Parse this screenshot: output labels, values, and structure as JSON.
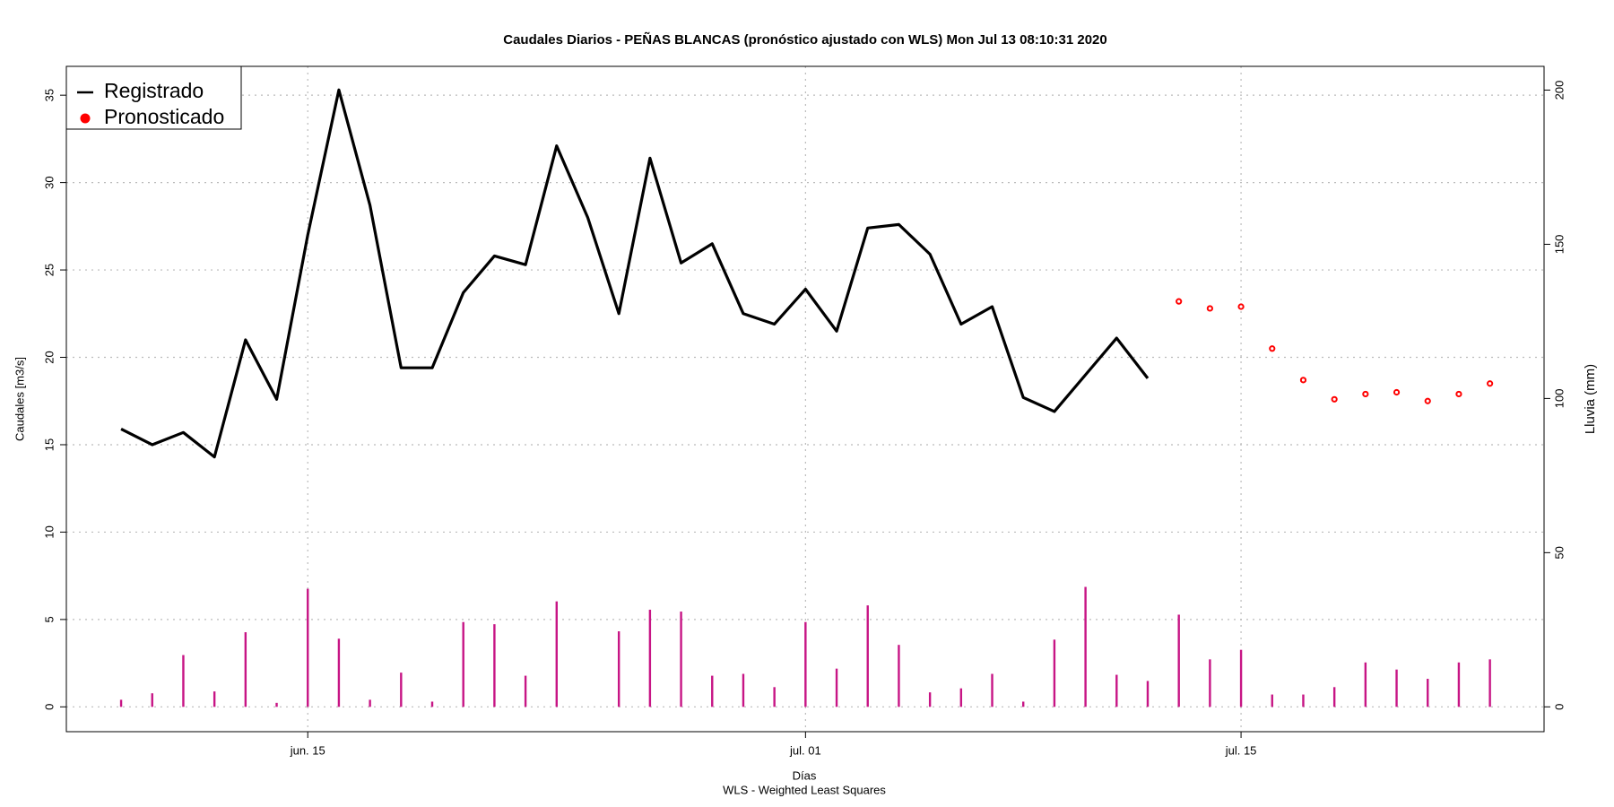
{
  "chart_data": {
    "type": "line",
    "title": "Caudales Diarios -  PEÑAS BLANCAS  (pronóstico ajustado con WLS) Mon Jul 13 08:10:31 2020",
    "xlabel": "Días",
    "subtitle": "WLS - Weighted Least Squares",
    "ylabel": "Caudales [m3/s]",
    "y2label": "Lluvia (mm)",
    "y2label_color": "#c71585",
    "categories": [
      null,
      null,
      null,
      null,
      null,
      null,
      "jun. 15",
      null,
      null,
      null,
      null,
      null,
      null,
      null,
      null,
      null,
      null,
      null,
      null,
      null,
      null,
      null,
      "jul. 01",
      null,
      null,
      null,
      null,
      null,
      null,
      null,
      null,
      null,
      null,
      null,
      null,
      null,
      "jul. 15",
      null,
      null,
      null,
      null,
      null,
      null,
      null,
      null
    ],
    "ylim": [
      -1.42,
      36.65
    ],
    "yticks": [
      0,
      5,
      10,
      15,
      20,
      25,
      30,
      35
    ],
    "y2lim": [
      -8.05,
      207.7
    ],
    "y2ticks": [
      0,
      50,
      100,
      150,
      200
    ],
    "grid": true,
    "legend": "top-left",
    "series": [
      {
        "name": "Registrado",
        "type": "line",
        "color": "#000000",
        "values": [
          15.9,
          15.0,
          15.7,
          14.3,
          21.0,
          17.6,
          27.0,
          35.3,
          28.7,
          19.4,
          19.4,
          23.7,
          25.8,
          25.3,
          32.1,
          28.0,
          22.5,
          31.4,
          25.4,
          26.5,
          22.5,
          21.9,
          23.9,
          21.5,
          27.4,
          27.6,
          25.9,
          21.9,
          22.9,
          17.7,
          16.9,
          19.0,
          21.1,
          18.8,
          null,
          null,
          null,
          null,
          null,
          null,
          null,
          null,
          null,
          null,
          null
        ]
      },
      {
        "name": "Pronosticado",
        "type": "scatter",
        "color": "#ff0000",
        "values": [
          null,
          null,
          null,
          null,
          null,
          null,
          null,
          null,
          null,
          null,
          null,
          null,
          null,
          null,
          null,
          null,
          null,
          null,
          null,
          null,
          null,
          null,
          null,
          null,
          null,
          null,
          null,
          null,
          null,
          null,
          null,
          null,
          null,
          null,
          23.2,
          22.8,
          22.9,
          20.5,
          18.7,
          17.6,
          17.9,
          18.0,
          17.5,
          17.9,
          18.5
        ]
      },
      {
        "type": "bar",
        "axis": "y2",
        "color": "#c71585",
        "values": [
          2.3,
          4.4,
          16.8,
          5.0,
          24.2,
          1.3,
          38.3,
          22.1,
          2.3,
          11.1,
          1.7,
          27.5,
          26.8,
          10.1,
          34.2,
          0,
          24.5,
          31.5,
          30.9,
          10.1,
          10.7,
          6.4,
          27.5,
          12.4,
          32.9,
          20.1,
          4.7,
          6.0,
          10.7,
          1.7,
          21.8,
          38.9,
          10.4,
          8.4,
          29.9,
          15.4,
          18.5,
          4.0,
          4.0,
          6.4,
          14.4,
          12.1,
          9.1,
          14.4,
          15.4
        ]
      }
    ]
  }
}
